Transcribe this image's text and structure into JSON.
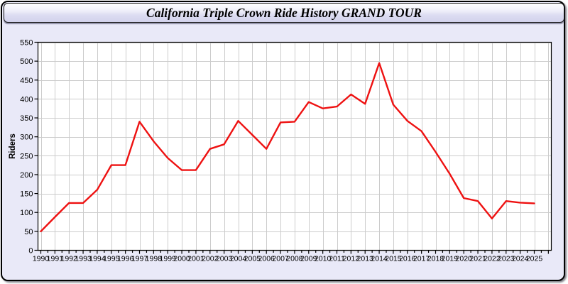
{
  "header": {
    "title": "California Triple Crown Ride History GRAND TOUR"
  },
  "colors": {
    "page_background": "#E9E9F8",
    "plot_background": "#FFFFFF",
    "gridline": "#CCCCCC",
    "axis": "#000000",
    "line": "#EE1111",
    "text": "#000000"
  },
  "chart_data": {
    "type": "line",
    "title": "California Triple Crown Ride History GRAND TOUR",
    "xlabel": "",
    "ylabel": "Riders",
    "ylim": [
      0,
      550
    ],
    "ytick_step": 50,
    "grid": true,
    "legend": "none",
    "x": [
      1990,
      1991,
      1992,
      1993,
      1994,
      1995,
      1996,
      1997,
      1998,
      1999,
      2000,
      2001,
      2002,
      2003,
      2004,
      2005,
      2006,
      2007,
      2008,
      2009,
      2010,
      2011,
      2012,
      2013,
      2014,
      2015,
      2016,
      2017,
      2018,
      2019,
      2020,
      2021,
      2022,
      2023,
      2024,
      2025
    ],
    "series": [
      {
        "name": "Riders",
        "color": "#EE1111",
        "values": [
          50,
          88,
          125,
          125,
          160,
          225,
          225,
          340,
          288,
          244,
          212,
          212,
          268,
          280,
          342,
          305,
          268,
          338,
          340,
          392,
          375,
          380,
          412,
          387,
          495,
          385,
          342,
          315,
          260,
          202,
          138,
          130,
          84,
          130,
          126,
          124
        ]
      }
    ]
  }
}
